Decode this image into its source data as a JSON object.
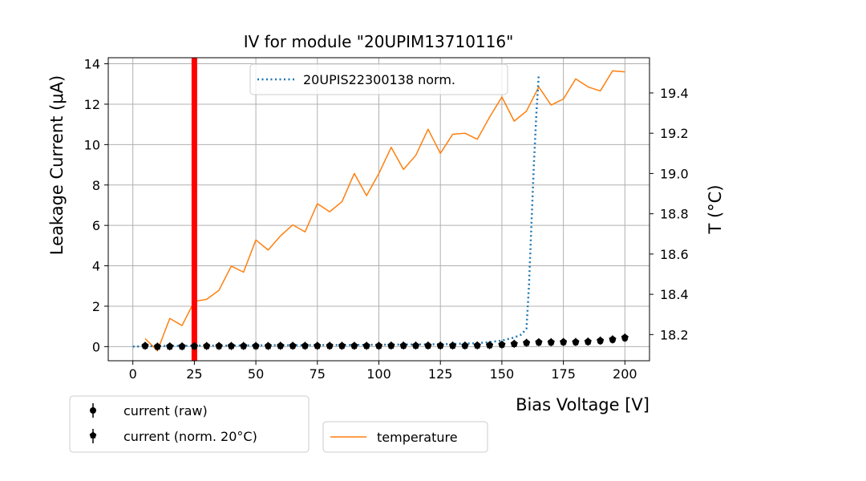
{
  "chart_data": {
    "type": "line",
    "title": "IV for module \"20UPIM13710116\"",
    "xlabel": "Bias Voltage [V]",
    "ylabel": "Leakage Current (μA)",
    "y2label": "T (°C)",
    "xlim": [
      -10,
      210
    ],
    "ylim": [
      -0.7,
      14.3
    ],
    "y2lim": [
      18.07,
      19.575
    ],
    "xticks": [
      0,
      25,
      50,
      75,
      100,
      125,
      150,
      175,
      200
    ],
    "yticks": [
      0,
      2,
      4,
      6,
      8,
      10,
      12,
      14
    ],
    "y2ticks": [
      18.2,
      18.4,
      18.6,
      18.8,
      19.0,
      19.2,
      19.4
    ],
    "y2tick_labels": [
      "18.2",
      "18.4",
      "18.6",
      "18.8",
      "19.0",
      "19.2",
      "19.4"
    ],
    "grid": true,
    "marker_line": {
      "x": 25,
      "color": "#ff0000"
    },
    "colors": {
      "reference": "#1f77b4",
      "temperature": "#ff7f0e",
      "current": "#000000"
    },
    "legends": {
      "reference_label": "20UPIS22300138 norm.",
      "raw_label": "current (raw)",
      "norm_label": "current (norm. 20°C)",
      "temp_label": "temperature"
    },
    "x": [
      5,
      10,
      15,
      20,
      25,
      30,
      35,
      40,
      45,
      50,
      55,
      60,
      65,
      70,
      75,
      80,
      85,
      90,
      95,
      100,
      105,
      110,
      115,
      120,
      125,
      130,
      135,
      140,
      145,
      150,
      155,
      160,
      165,
      170,
      175,
      180,
      185,
      190,
      195,
      200
    ],
    "series": [
      {
        "name": "current (raw)",
        "axis": "left",
        "x": [
          5,
          10,
          15,
          20,
          25,
          30,
          35,
          40,
          45,
          50,
          55,
          60,
          65,
          70,
          75,
          80,
          85,
          90,
          95,
          100,
          105,
          110,
          115,
          120,
          125,
          130,
          135,
          140,
          145,
          150,
          155,
          160,
          165,
          170,
          175,
          180,
          185,
          190,
          195,
          200
        ],
        "values": [
          0.03,
          0.0,
          0.01,
          0.01,
          0.02,
          0.02,
          0.03,
          0.03,
          0.03,
          0.03,
          0.03,
          0.03,
          0.03,
          0.03,
          0.03,
          0.03,
          0.03,
          0.03,
          0.03,
          0.03,
          0.04,
          0.04,
          0.04,
          0.04,
          0.04,
          0.04,
          0.04,
          0.05,
          0.06,
          0.09,
          0.12,
          0.17,
          0.19,
          0.19,
          0.2,
          0.2,
          0.22,
          0.26,
          0.32,
          0.4
        ]
      },
      {
        "name": "current (norm. 20°C)",
        "axis": "left",
        "x": [
          5,
          10,
          15,
          20,
          25,
          30,
          35,
          40,
          45,
          50,
          55,
          60,
          65,
          70,
          75,
          80,
          85,
          90,
          95,
          100,
          105,
          110,
          115,
          120,
          125,
          130,
          135,
          140,
          145,
          150,
          155,
          160,
          165,
          170,
          175,
          180,
          185,
          190,
          195,
          200
        ],
        "values": [
          0.04,
          0.0,
          0.01,
          0.01,
          0.02,
          0.03,
          0.03,
          0.03,
          0.03,
          0.03,
          0.03,
          0.04,
          0.04,
          0.04,
          0.04,
          0.04,
          0.04,
          0.04,
          0.04,
          0.04,
          0.05,
          0.05,
          0.05,
          0.05,
          0.05,
          0.05,
          0.05,
          0.06,
          0.07,
          0.1,
          0.14,
          0.19,
          0.22,
          0.22,
          0.23,
          0.23,
          0.25,
          0.3,
          0.36,
          0.45
        ]
      },
      {
        "name": "20UPIS22300138 norm.",
        "axis": "left",
        "x": [
          0,
          10,
          20,
          30,
          40,
          50,
          60,
          70,
          80,
          90,
          100,
          110,
          120,
          130,
          140,
          145,
          150,
          155,
          158,
          160,
          161,
          162,
          163,
          164,
          165
        ],
        "values": [
          0.0,
          0.03,
          0.04,
          0.05,
          0.05,
          0.06,
          0.07,
          0.07,
          0.08,
          0.08,
          0.09,
          0.1,
          0.11,
          0.13,
          0.17,
          0.22,
          0.3,
          0.45,
          0.6,
          0.9,
          3.0,
          6.0,
          9.0,
          11.5,
          13.5
        ]
      },
      {
        "name": "temperature",
        "axis": "right",
        "x": [
          5,
          10,
          15,
          20,
          25,
          30,
          35,
          40,
          45,
          50,
          55,
          60,
          65,
          70,
          75,
          80,
          85,
          90,
          95,
          100,
          105,
          110,
          115,
          120,
          125,
          130,
          135,
          140,
          145,
          150,
          155,
          160,
          165,
          170,
          175,
          180,
          185,
          190,
          195,
          200
        ],
        "values": [
          18.18,
          18.12,
          18.28,
          18.245,
          18.365,
          18.375,
          18.42,
          18.54,
          18.51,
          18.67,
          18.62,
          18.69,
          18.745,
          18.71,
          18.85,
          18.81,
          18.86,
          19.0,
          18.89,
          19.0,
          19.13,
          19.02,
          19.09,
          19.22,
          19.1,
          19.195,
          19.2,
          19.17,
          19.28,
          19.38,
          19.26,
          19.31,
          19.43,
          19.34,
          19.37,
          19.47,
          19.43,
          19.41,
          19.51,
          19.505
        ]
      }
    ]
  }
}
